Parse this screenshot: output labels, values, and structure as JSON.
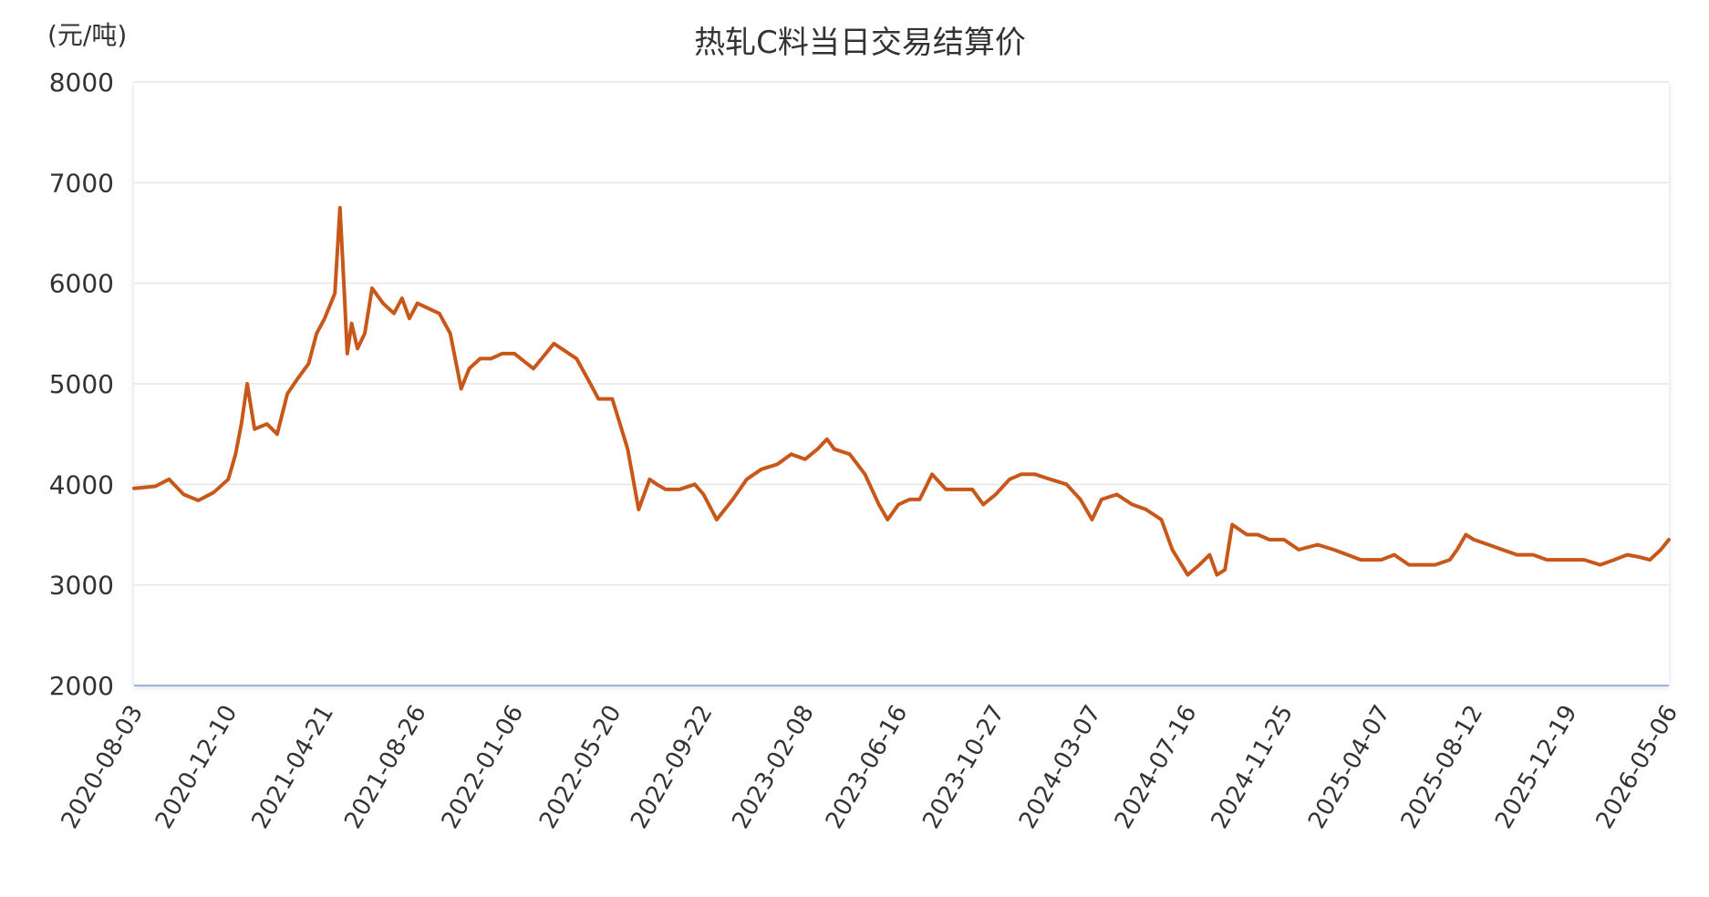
{
  "chart_data": {
    "type": "line",
    "title": "热轧C料当日交易结算价",
    "unit_label": "(元/吨)",
    "ylim": [
      2000,
      8000
    ],
    "yticks": [
      2000,
      3000,
      4000,
      5000,
      6000,
      7000,
      8000
    ],
    "x_tick_labels": [
      "2020-08-03",
      "2020-12-10",
      "2021-04-21",
      "2021-08-26",
      "2022-01-06",
      "2022-05-20",
      "2022-09-22",
      "2023-02-08",
      "2023-06-16",
      "2023-10-27",
      "2024-03-07",
      "2024-07-16",
      "2024-11-25",
      "2025-04-07",
      "2025-08-12",
      "2025-12-19",
      "2026-05-06"
    ],
    "grid": "horizontal",
    "legend": "none",
    "line_color": "#C8581A",
    "series": [
      {
        "x": [
          "2020-08-03",
          "2020-09-01",
          "2020-09-20",
          "2020-10-10",
          "2020-10-30",
          "2020-11-20",
          "2020-12-10",
          "2020-12-20",
          "2020-12-28",
          "2021-01-05",
          "2021-01-15",
          "2021-02-01",
          "2021-02-15",
          "2021-03-01",
          "2021-03-15",
          "2021-03-30",
          "2021-04-10",
          "2021-04-21",
          "2021-05-05",
          "2021-05-12",
          "2021-05-18",
          "2021-05-22",
          "2021-05-28",
          "2021-06-05",
          "2021-06-15",
          "2021-06-25",
          "2021-07-10",
          "2021-07-25",
          "2021-08-05",
          "2021-08-15",
          "2021-08-26",
          "2021-09-10",
          "2021-09-25",
          "2021-10-10",
          "2021-10-25",
          "2021-11-05",
          "2021-11-20",
          "2021-12-05",
          "2021-12-20",
          "2022-01-06",
          "2022-02-01",
          "2022-03-01",
          "2022-04-01",
          "2022-04-20",
          "2022-05-01",
          "2022-05-20",
          "2022-06-10",
          "2022-06-25",
          "2022-07-10",
          "2022-07-20",
          "2022-08-01",
          "2022-08-20",
          "2022-09-10",
          "2022-09-22",
          "2022-10-10",
          "2022-11-01",
          "2022-11-20",
          "2022-12-10",
          "2023-01-01",
          "2023-01-20",
          "2023-02-08",
          "2023-02-25",
          "2023-03-10",
          "2023-03-20",
          "2023-04-10",
          "2023-05-01",
          "2023-05-20",
          "2023-06-01",
          "2023-06-16",
          "2023-07-01",
          "2023-07-15",
          "2023-08-01",
          "2023-08-20",
          "2023-09-10",
          "2023-09-25",
          "2023-10-10",
          "2023-10-27",
          "2023-11-15",
          "2023-12-01",
          "2023-12-20",
          "2024-01-10",
          "2024-02-01",
          "2024-02-20",
          "2024-03-07",
          "2024-03-20",
          "2024-04-10",
          "2024-05-01",
          "2024-05-20",
          "2024-06-10",
          "2024-06-25",
          "2024-07-16",
          "2024-08-01",
          "2024-08-15",
          "2024-08-25",
          "2024-09-05",
          "2024-09-15",
          "2024-09-25",
          "2024-10-05",
          "2024-10-20",
          "2024-11-05",
          "2024-11-25",
          "2024-12-15",
          "2025-01-10",
          "2025-02-01",
          "2025-02-20",
          "2025-03-10",
          "2025-04-07",
          "2025-04-25",
          "2025-05-15",
          "2025-06-01",
          "2025-06-20",
          "2025-07-10",
          "2025-07-20",
          "2025-08-01",
          "2025-08-12",
          "2025-09-01",
          "2025-09-20",
          "2025-10-10",
          "2025-11-01",
          "2025-11-20",
          "2025-12-19",
          "2026-01-10",
          "2026-02-01",
          "2026-02-20",
          "2026-03-10",
          "2026-03-25",
          "2026-04-10",
          "2026-04-25",
          "2026-05-06"
        ],
        "y": [
          3960,
          3980,
          4050,
          3900,
          3840,
          3920,
          4050,
          4300,
          4600,
          5000,
          4550,
          4600,
          4500,
          4900,
          5050,
          5200,
          5500,
          5650,
          5900,
          6750,
          5900,
          5300,
          5600,
          5350,
          5500,
          5950,
          5800,
          5700,
          5850,
          5650,
          5800,
          5750,
          5700,
          5500,
          4950,
          5150,
          5250,
          5250,
          5300,
          5300,
          5150,
          5400,
          5250,
          5000,
          4850,
          4850,
          4350,
          3750,
          4050,
          4000,
          3950,
          3950,
          4000,
          3900,
          3650,
          3850,
          4050,
          4150,
          4200,
          4300,
          4250,
          4350,
          4450,
          4350,
          4300,
          4100,
          3800,
          3650,
          3800,
          3850,
          3850,
          4100,
          3950,
          3950,
          3950,
          3800,
          3900,
          4050,
          4100,
          4100,
          4050,
          4000,
          3850,
          3650,
          3850,
          3900,
          3800,
          3750,
          3650,
          3350,
          3100,
          3200,
          3300,
          3100,
          3150,
          3600,
          3550,
          3500,
          3500,
          3450,
          3450,
          3350,
          3400,
          3350,
          3300,
          3250,
          3250,
          3300,
          3200,
          3200,
          3200,
          3250,
          3350,
          3500,
          3450,
          3400,
          3350,
          3300,
          3300,
          3250,
          3250,
          3250,
          3200,
          3250,
          3300,
          3280,
          3250,
          3350,
          3450
        ]
      }
    ]
  }
}
